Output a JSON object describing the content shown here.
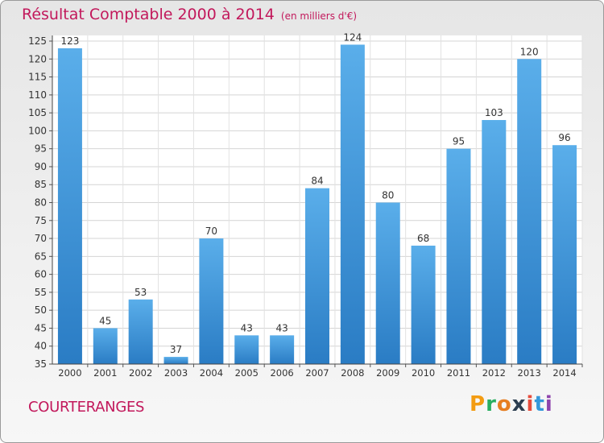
{
  "chart_data": {
    "type": "bar",
    "title": "Résultat Comptable 2000 à 2014",
    "subtitle": "(en milliers d'€)",
    "categories": [
      "2000",
      "2001",
      "2002",
      "2003",
      "2004",
      "2005",
      "2006",
      "2007",
      "2008",
      "2009",
      "2010",
      "2011",
      "2012",
      "2013",
      "2014"
    ],
    "values": [
      123,
      45,
      53,
      37,
      70,
      43,
      43,
      84,
      124,
      80,
      68,
      95,
      103,
      120,
      96
    ],
    "ylim": [
      35,
      125
    ],
    "yticks": [
      35,
      40,
      45,
      50,
      55,
      60,
      65,
      70,
      75,
      80,
      85,
      90,
      95,
      100,
      105,
      110,
      115,
      120,
      125
    ],
    "xlabel": "",
    "ylabel": "",
    "grid": true
  },
  "location": "COURTERANGES",
  "brand": {
    "letters": [
      "P",
      "r",
      "o",
      "x",
      "i",
      "t",
      "i"
    ],
    "colors": [
      "#f39c12",
      "#27ae60",
      "#e67e22",
      "#2c3e50",
      "#e74c3c",
      "#3498db",
      "#8e44ad"
    ]
  },
  "colors": {
    "accent": "#c2185b",
    "bar": "#3a8fd6"
  }
}
